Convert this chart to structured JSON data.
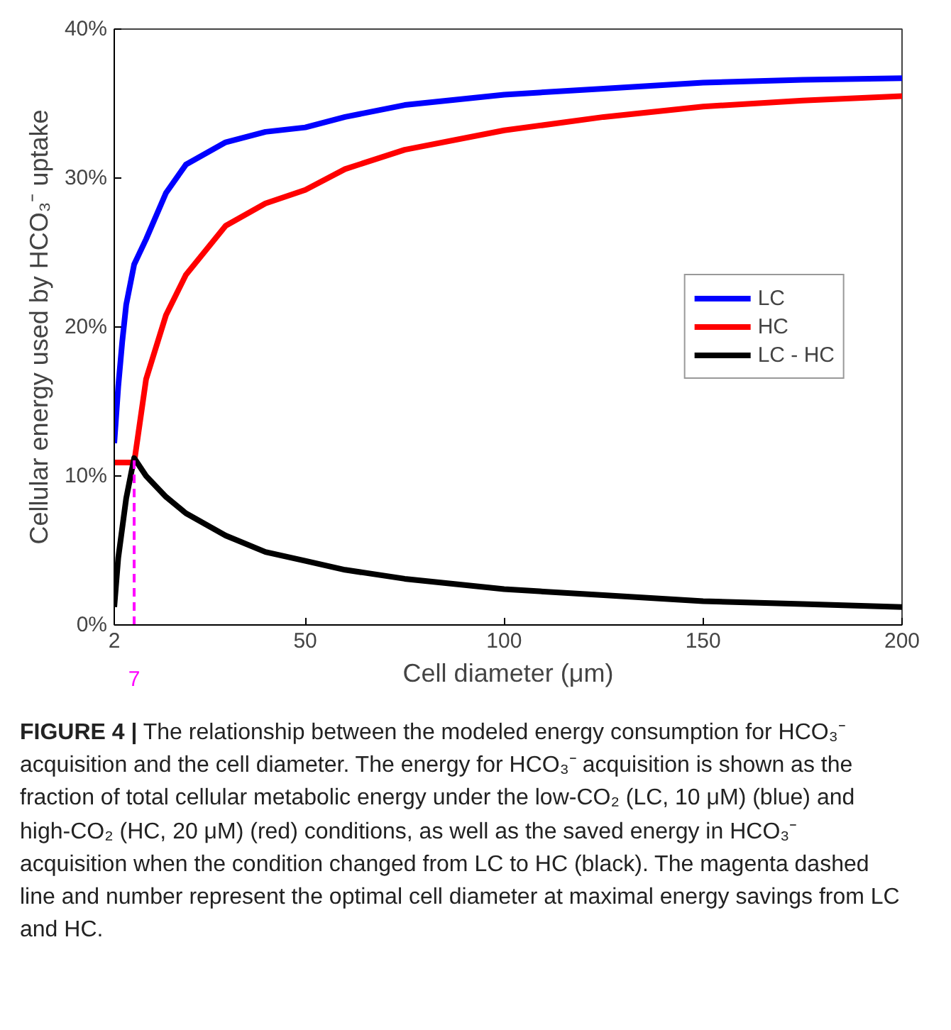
{
  "chart_data": {
    "type": "line",
    "xlabel": "Cell diameter (μm)",
    "ylabel": "Cellular energy used by HCO₃⁻ uptake",
    "xlim": [
      2,
      200
    ],
    "xticks": [
      2,
      50,
      100,
      150,
      200
    ],
    "ylim": [
      0,
      40
    ],
    "yticks": [
      {
        "value": 0,
        "label": "0%"
      },
      {
        "value": 10,
        "label": "10%"
      },
      {
        "value": 20,
        "label": "20%"
      },
      {
        "value": 30,
        "label": "30%"
      },
      {
        "value": 40,
        "label": "40%"
      }
    ],
    "grid": false,
    "legend": "right",
    "marker": "none",
    "line_style": "solid",
    "series": [
      {
        "name": "LC",
        "color": "#0000ff",
        "x": [
          2,
          3,
          4,
          5,
          7,
          10,
          15,
          20,
          30,
          40,
          50,
          60,
          75,
          100,
          125,
          150,
          175,
          200
        ],
        "values": [
          12.2,
          16,
          19,
          21.5,
          24.2,
          25.9,
          29,
          30.9,
          32.4,
          33.1,
          33.4,
          34.1,
          34.9,
          35.6,
          36.0,
          36.4,
          36.6,
          36.7
        ]
      },
      {
        "name": "HC",
        "color": "#ff0000",
        "x": [
          2,
          7,
          10,
          15,
          20,
          30,
          40,
          50,
          60,
          75,
          100,
          125,
          150,
          175,
          200
        ],
        "values": [
          10.9,
          10.9,
          16.5,
          20.8,
          23.5,
          26.8,
          28.3,
          29.2,
          30.6,
          31.9,
          33.2,
          34.1,
          34.8,
          35.2,
          35.5
        ]
      },
      {
        "name": "LC - HC",
        "color": "#000000",
        "x": [
          2,
          3,
          5,
          7,
          10,
          15,
          20,
          30,
          40,
          50,
          60,
          75,
          100,
          125,
          150,
          175,
          200
        ],
        "values": [
          1.2,
          4.5,
          8.5,
          11.2,
          10.0,
          8.6,
          7.5,
          6.0,
          4.9,
          4.3,
          3.7,
          3.1,
          2.4,
          2.0,
          1.6,
          1.4,
          1.2
        ]
      }
    ],
    "ref_lines": [
      {
        "axis": "x",
        "value": 7,
        "label": "7",
        "color": "#ff00ff",
        "line_style": "dashed"
      }
    ],
    "annotations": [
      "FIGURE 4 | The relationship between the modeled energy consumption for HCO₃⁻ acquisition and the cell diameter. The energy for HCO₃⁻ acquisition is shown as the fraction of total cellular metabolic energy under the low-CO₂ (LC, 10 μM) (blue) and high-CO₂ (HC, 20 μM) (red) conditions, as well as the saved energy in HCO₃⁻ acquisition when the condition changed from LC to HC (black). The magenta dashed line and number represent the optimal cell diameter at maximal energy savings from LC and HC."
    ]
  }
}
